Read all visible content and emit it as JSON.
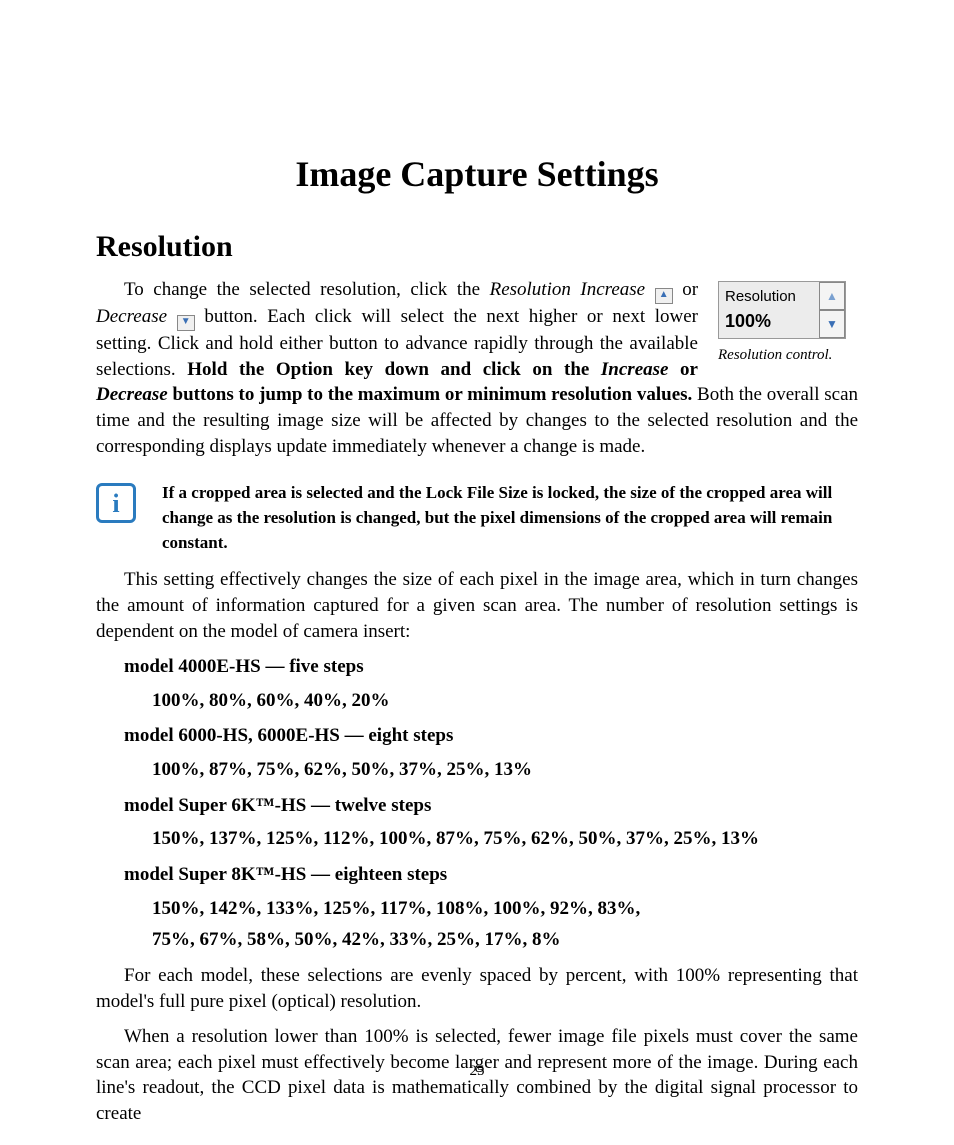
{
  "title": "Image Capture Settings",
  "section": "Resolution",
  "widget": {
    "label": "Resolution",
    "value": "100%",
    "caption": "Resolution control."
  },
  "p1": {
    "lead": "To change the selected resolution, click the ",
    "res_increase": "Resolution Increase",
    "or1": " or ",
    "decrease": "Decrease",
    "after_btns": " button. Each click will select the next higher or next lower setting. Click and hold either button to advance rapidly through the available selections. ",
    "bold_span": "Hold the Option key down and click on the ",
    "increase_i": "Increase",
    "or2": " or ",
    "decrease_i": "Decrease",
    "bold_tail": " buttons to jump to the maximum or minimum resolution values.",
    "tail": " Both the overall scan time and the resulting image size will be affected by changes to the selected resolution and the corresponding displays update immediately whenever a change is made."
  },
  "note": "If a cropped area is selected and the Lock File Size is locked, the size of the cropped area will change as the resolution is changed, but the pixel dimensions of the cropped area will remain constant.",
  "p2": "This setting effectively changes the size of each pixel in the image area, which in turn changes the amount of information captured for a given scan area.  The number of resolution settings is dependent on the model of camera insert:",
  "models": [
    {
      "head": "model 4000E-HS — five steps",
      "lines": [
        "100%, 80%, 60%, 40%, 20%"
      ]
    },
    {
      "head": "model 6000-HS, 6000E-HS — eight steps",
      "lines": [
        "100%, 87%, 75%, 62%, 50%, 37%, 25%, 13%"
      ]
    },
    {
      "head": "model Super 6K™-HS — twelve steps",
      "lines": [
        "150%, 137%, 125%, 112%, 100%, 87%, 75%, 62%, 50%, 37%, 25%, 13%"
      ]
    },
    {
      "head": "model Super 8K™-HS — eighteen steps",
      "lines": [
        "150%, 142%, 133%, 125%, 117%, 108%, 100%, 92%, 83%,",
        "75%, 67%, 58%, 50%, 42%, 33%, 25%, 17%, 8%"
      ]
    }
  ],
  "p3": "For each model, these selections are evenly spaced by percent, with 100% representing that model's full pure pixel (optical) resolution.",
  "p4": "When a resolution lower than 100% is selected, fewer image file pixels must cover the same scan area; each pixel must effectively become larger and represent more of the image. During each line's readout, the CCD pixel data is mathematically combined by the digital signal processor to create",
  "page_number": "25"
}
